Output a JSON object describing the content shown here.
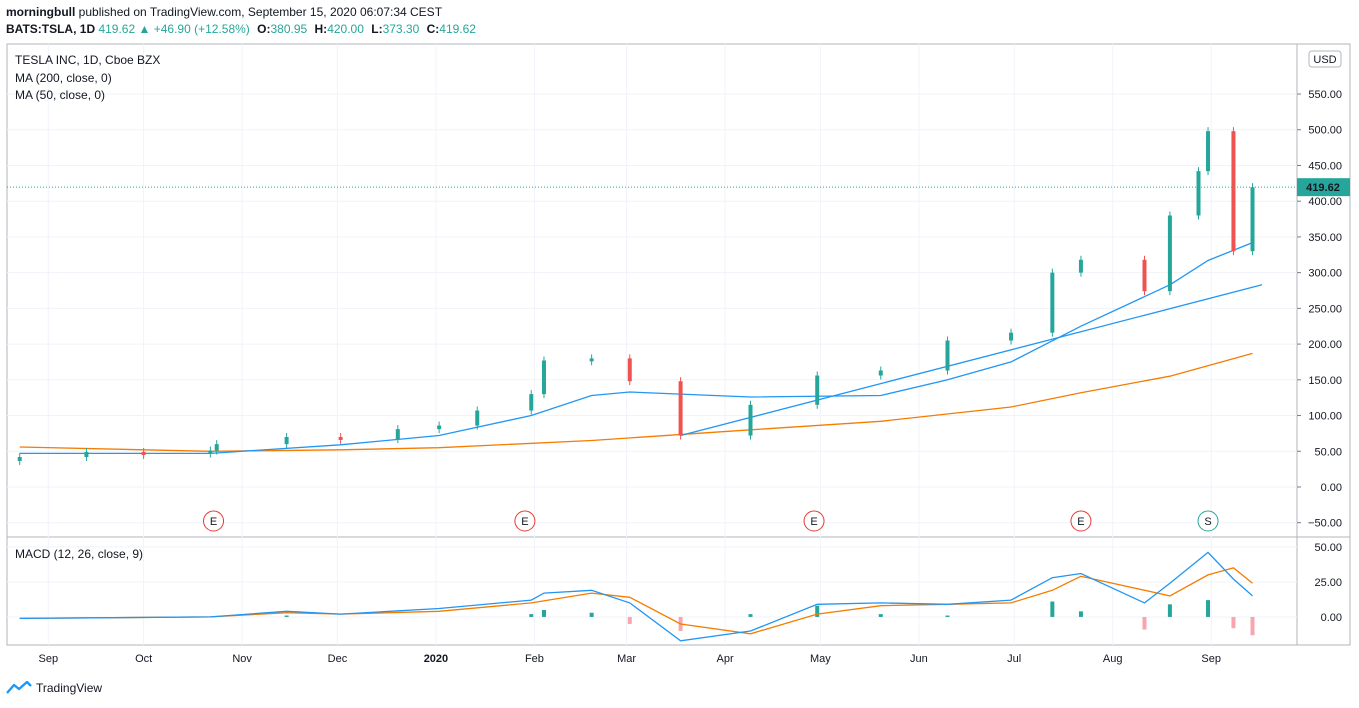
{
  "header": {
    "author": "morningbull",
    "published_text": "published on TradingView.com, September 15, 2020 06:07:34 CEST",
    "symbol": "BATS:TSLA, 1D",
    "last": "419.62",
    "change": "▲ +46.90 (+12.58%)",
    "o_label": "O:",
    "o_value": "380.95",
    "h_label": "H:",
    "h_value": "420.00",
    "l_label": "L:",
    "l_value": "373.30",
    "c_label": "C:",
    "c_value": "419.62"
  },
  "legend": {
    "title": "TESLA INC, 1D, Cboe BZX",
    "ma200": "MA (200, close, 0)",
    "ma50": "MA (50, close, 0)",
    "macd": "MACD (12, 26, close, 9)"
  },
  "currency": "USD",
  "price_label": "419.62",
  "footer": {
    "brand": "TradingView"
  },
  "colors": {
    "up": "#26a69a",
    "down": "#ef5350",
    "ma50": "#2196f3",
    "ma200": "#f57c00",
    "macd_line": "#2196f3",
    "signal_line": "#f57c00",
    "grid": "#f0f3fa",
    "axis": "#787b86",
    "event_earnings": "#e53935",
    "event_split": "#26a69a"
  },
  "chart_data": [
    {
      "type": "candlestick",
      "title": "TESLA INC, 1D, Cboe BZX",
      "y_ticks": [
        -50,
        0,
        50,
        100,
        150,
        200,
        250,
        300,
        350,
        400,
        450,
        500,
        550
      ],
      "y_tick_labels": [
        "−50.00",
        "0.00",
        "50.00",
        "100.00",
        "150.00",
        "200.00",
        "250.00",
        "300.00",
        "350.00",
        "400.00",
        "450.00",
        "500.00",
        "550.00"
      ],
      "ylim": [
        -70,
        620
      ],
      "x_ticks": [
        "Sep",
        "Oct",
        "Nov",
        "Dec",
        "2020",
        "Feb",
        "Mar",
        "Apr",
        "May",
        "Jun",
        "Jul",
        "Aug",
        "Sep"
      ],
      "last_price": 419.62,
      "events": [
        {
          "date": "2019-10-23",
          "label": "E"
        },
        {
          "date": "2020-01-29",
          "label": "E"
        },
        {
          "date": "2020-04-29",
          "label": "E"
        },
        {
          "date": "2020-07-22",
          "label": "E"
        },
        {
          "date": "2020-08-31",
          "label": "S"
        }
      ],
      "candles": [
        {
          "date": "2019-08-23",
          "value": 42
        },
        {
          "date": "2019-09-13",
          "value": 49
        },
        {
          "date": "2019-10-01",
          "value": 48
        },
        {
          "date": "2019-10-22",
          "value": 51
        },
        {
          "date": "2019-10-24",
          "value": 60
        },
        {
          "date": "2019-11-15",
          "value": 70
        },
        {
          "date": "2019-12-02",
          "value": 67
        },
        {
          "date": "2019-12-20",
          "value": 81
        },
        {
          "date": "2020-01-02",
          "value": 86
        },
        {
          "date": "2020-01-14",
          "value": 107
        },
        {
          "date": "2020-01-31",
          "value": 130
        },
        {
          "date": "2020-02-04",
          "value": 177
        },
        {
          "date": "2020-02-19",
          "value": 180
        },
        {
          "date": "2020-03-02",
          "value": 148
        },
        {
          "date": "2020-03-18",
          "value": 72
        },
        {
          "date": "2020-04-09",
          "value": 115
        },
        {
          "date": "2020-04-30",
          "value": 156
        },
        {
          "date": "2020-05-20",
          "value": 163
        },
        {
          "date": "2020-06-10",
          "value": 205
        },
        {
          "date": "2020-06-30",
          "value": 216
        },
        {
          "date": "2020-07-13",
          "value": 300
        },
        {
          "date": "2020-07-22",
          "value": 318
        },
        {
          "date": "2020-08-11",
          "value": 274
        },
        {
          "date": "2020-08-19",
          "value": 380
        },
        {
          "date": "2020-08-28",
          "value": 442
        },
        {
          "date": "2020-08-31",
          "value": 498
        },
        {
          "date": "2020-09-08",
          "value": 330
        },
        {
          "date": "2020-09-14",
          "value": 419.62
        }
      ],
      "series": [
        {
          "name": "MA (50, close, 0)",
          "points": [
            [
              "2019-08-23",
              47
            ],
            [
              "2019-10-22",
              47
            ],
            [
              "2019-12-02",
              59
            ],
            [
              "2020-01-02",
              72
            ],
            [
              "2020-01-31",
              100
            ],
            [
              "2020-02-19",
              128
            ],
            [
              "2020-03-02",
              133
            ],
            [
              "2020-04-09",
              126
            ],
            [
              "2020-05-20",
              128
            ],
            [
              "2020-06-10",
              150
            ],
            [
              "2020-06-30",
              175
            ],
            [
              "2020-07-22",
              225
            ],
            [
              "2020-08-19",
              283
            ],
            [
              "2020-08-31",
              317
            ],
            [
              "2020-09-14",
              342
            ]
          ]
        },
        {
          "name": "MA (200, close, 0)",
          "points": [
            [
              "2019-08-23",
              56
            ],
            [
              "2019-10-22",
              50
            ],
            [
              "2019-12-02",
              52
            ],
            [
              "2020-01-02",
              55
            ],
            [
              "2020-02-19",
              65
            ],
            [
              "2020-04-09",
              80
            ],
            [
              "2020-05-20",
              92
            ],
            [
              "2020-06-30",
              112
            ],
            [
              "2020-07-22",
              132
            ],
            [
              "2020-08-19",
              155
            ],
            [
              "2020-09-14",
              187
            ]
          ]
        },
        {
          "name": "trendline",
          "points": [
            [
              "2020-03-18",
              72
            ],
            [
              "2020-09-17",
              283
            ]
          ]
        }
      ]
    },
    {
      "type": "macd",
      "title": "MACD (12, 26, close, 9)",
      "y_ticks": [
        0,
        25,
        50
      ],
      "y_tick_labels": [
        "0.00",
        "25.00",
        "50.00"
      ],
      "ylim": [
        -20,
        57
      ],
      "series": [
        {
          "name": "MACD",
          "points": [
            [
              "2019-08-23",
              -1
            ],
            [
              "2019-10-22",
              0
            ],
            [
              "2019-11-15",
              4
            ],
            [
              "2019-12-02",
              2
            ],
            [
              "2020-01-02",
              6
            ],
            [
              "2020-01-31",
              12
            ],
            [
              "2020-02-04",
              17
            ],
            [
              "2020-02-19",
              19
            ],
            [
              "2020-03-02",
              10
            ],
            [
              "2020-03-18",
              -17
            ],
            [
              "2020-04-09",
              -10
            ],
            [
              "2020-04-30",
              9
            ],
            [
              "2020-05-20",
              10
            ],
            [
              "2020-06-10",
              9
            ],
            [
              "2020-06-30",
              12
            ],
            [
              "2020-07-13",
              28
            ],
            [
              "2020-07-22",
              31
            ],
            [
              "2020-08-11",
              10
            ],
            [
              "2020-08-19",
              24
            ],
            [
              "2020-08-31",
              46
            ],
            [
              "2020-09-08",
              27
            ],
            [
              "2020-09-14",
              15
            ]
          ]
        },
        {
          "name": "Signal",
          "points": [
            [
              "2019-08-23",
              -1
            ],
            [
              "2019-10-22",
              0
            ],
            [
              "2019-11-15",
              3
            ],
            [
              "2019-12-02",
              2
            ],
            [
              "2020-01-02",
              4
            ],
            [
              "2020-01-31",
              10
            ],
            [
              "2020-02-19",
              17
            ],
            [
              "2020-03-02",
              14
            ],
            [
              "2020-03-18",
              -5
            ],
            [
              "2020-04-09",
              -12
            ],
            [
              "2020-04-30",
              2
            ],
            [
              "2020-05-20",
              8
            ],
            [
              "2020-06-10",
              9
            ],
            [
              "2020-06-30",
              10
            ],
            [
              "2020-07-13",
              19
            ],
            [
              "2020-07-22",
              29
            ],
            [
              "2020-08-11",
              19
            ],
            [
              "2020-08-19",
              15
            ],
            [
              "2020-08-31",
              30
            ],
            [
              "2020-09-08",
              35
            ],
            [
              "2020-09-14",
              24
            ]
          ]
        },
        {
          "name": "Histogram",
          "points": [
            [
              "2019-11-15",
              1
            ],
            [
              "2020-01-31",
              2
            ],
            [
              "2020-02-04",
              5
            ],
            [
              "2020-02-19",
              3
            ],
            [
              "2020-03-02",
              -5
            ],
            [
              "2020-03-18",
              -10
            ],
            [
              "2020-04-09",
              2
            ],
            [
              "2020-04-30",
              8
            ],
            [
              "2020-05-20",
              2
            ],
            [
              "2020-06-10",
              1
            ],
            [
              "2020-07-13",
              11
            ],
            [
              "2020-07-22",
              4
            ],
            [
              "2020-08-11",
              -9
            ],
            [
              "2020-08-19",
              9
            ],
            [
              "2020-08-31",
              12
            ],
            [
              "2020-09-08",
              -8
            ],
            [
              "2020-09-14",
              -13
            ]
          ]
        }
      ]
    }
  ]
}
